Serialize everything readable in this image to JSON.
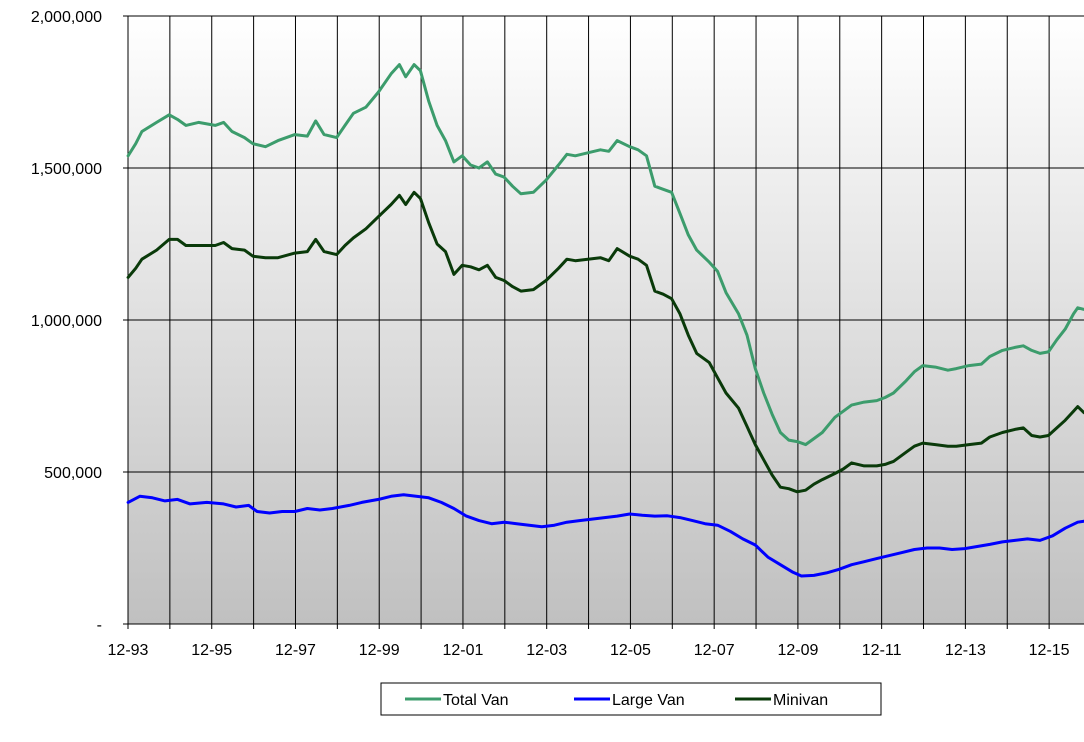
{
  "chart_data": {
    "type": "line",
    "title": "",
    "xlabel": "",
    "ylabel": "",
    "x_tick_labels": [
      "12-93",
      "12-95",
      "12-97",
      "12-99",
      "12-01",
      "12-03",
      "12-05",
      "12-07",
      "12-09",
      "12-11",
      "12-13",
      "12-15"
    ],
    "y_tick_labels": [
      "2,000,000",
      "1,500,000",
      "1,000,000",
      "500,000",
      "-"
    ],
    "ylim": [
      0,
      2000000
    ],
    "y_ticks": [
      0,
      500000,
      1000000,
      1500000,
      2000000
    ],
    "x_tick_years": [
      1993.917,
      1995.917,
      1997.917,
      1999.917,
      2001.917,
      2003.917,
      2005.917,
      2007.917,
      2009.917,
      2011.917,
      2013.917,
      2015.917
    ],
    "xlim": [
      1993.917,
      2016.75
    ],
    "vertical_grid_years": [
      1993.917,
      1994.917,
      1995.917,
      1996.917,
      1997.917,
      1998.917,
      1999.917,
      2000.917,
      2001.917,
      2002.917,
      2003.917,
      2004.917,
      2005.917,
      2006.917,
      2007.917,
      2008.917,
      2009.917,
      2010.917,
      2011.917,
      2012.917,
      2013.917,
      2014.917,
      2015.917
    ],
    "grid": true,
    "background_gradient": [
      "#ffffff",
      "#c0c0c0"
    ],
    "legend_position": "bottom",
    "series": [
      {
        "name": "Total Van",
        "color": "#3c9c6c",
        "points": [
          [
            1993.92,
            1540000
          ],
          [
            1994.1,
            1580000
          ],
          [
            1994.25,
            1620000
          ],
          [
            1994.6,
            1650000
          ],
          [
            1994.9,
            1675000
          ],
          [
            1995.1,
            1660000
          ],
          [
            1995.3,
            1640000
          ],
          [
            1995.6,
            1650000
          ],
          [
            1996.0,
            1640000
          ],
          [
            1996.2,
            1650000
          ],
          [
            1996.4,
            1620000
          ],
          [
            1996.7,
            1600000
          ],
          [
            1996.9,
            1580000
          ],
          [
            1997.2,
            1570000
          ],
          [
            1997.5,
            1590000
          ],
          [
            1997.9,
            1610000
          ],
          [
            1998.2,
            1605000
          ],
          [
            1998.4,
            1655000
          ],
          [
            1998.6,
            1610000
          ],
          [
            1998.9,
            1600000
          ],
          [
            1999.1,
            1640000
          ],
          [
            1999.3,
            1680000
          ],
          [
            1999.6,
            1700000
          ],
          [
            1999.9,
            1750000
          ],
          [
            2000.2,
            1810000
          ],
          [
            2000.4,
            1840000
          ],
          [
            2000.55,
            1800000
          ],
          [
            2000.75,
            1840000
          ],
          [
            2000.9,
            1820000
          ],
          [
            2001.1,
            1720000
          ],
          [
            2001.3,
            1640000
          ],
          [
            2001.5,
            1590000
          ],
          [
            2001.7,
            1520000
          ],
          [
            2001.9,
            1540000
          ],
          [
            2002.1,
            1510000
          ],
          [
            2002.3,
            1500000
          ],
          [
            2002.5,
            1520000
          ],
          [
            2002.7,
            1480000
          ],
          [
            2002.9,
            1470000
          ],
          [
            2003.1,
            1440000
          ],
          [
            2003.3,
            1415000
          ],
          [
            2003.6,
            1420000
          ],
          [
            2003.9,
            1460000
          ],
          [
            2004.2,
            1510000
          ],
          [
            2004.4,
            1545000
          ],
          [
            2004.6,
            1540000
          ],
          [
            2004.9,
            1550000
          ],
          [
            2005.2,
            1560000
          ],
          [
            2005.4,
            1555000
          ],
          [
            2005.6,
            1590000
          ],
          [
            2005.9,
            1570000
          ],
          [
            2006.1,
            1560000
          ],
          [
            2006.3,
            1540000
          ],
          [
            2006.5,
            1440000
          ],
          [
            2006.7,
            1430000
          ],
          [
            2006.9,
            1420000
          ],
          [
            2007.1,
            1350000
          ],
          [
            2007.3,
            1280000
          ],
          [
            2007.5,
            1230000
          ],
          [
            2007.8,
            1190000
          ],
          [
            2008.0,
            1160000
          ],
          [
            2008.2,
            1090000
          ],
          [
            2008.5,
            1020000
          ],
          [
            2008.7,
            950000
          ],
          [
            2008.9,
            840000
          ],
          [
            2009.1,
            760000
          ],
          [
            2009.3,
            690000
          ],
          [
            2009.5,
            630000
          ],
          [
            2009.7,
            605000
          ],
          [
            2009.9,
            600000
          ],
          [
            2010.1,
            590000
          ],
          [
            2010.3,
            610000
          ],
          [
            2010.5,
            630000
          ],
          [
            2010.8,
            680000
          ],
          [
            2011.0,
            700000
          ],
          [
            2011.2,
            720000
          ],
          [
            2011.5,
            730000
          ],
          [
            2011.8,
            735000
          ],
          [
            2012.0,
            745000
          ],
          [
            2012.2,
            760000
          ],
          [
            2012.5,
            800000
          ],
          [
            2012.7,
            830000
          ],
          [
            2012.9,
            850000
          ],
          [
            2013.2,
            845000
          ],
          [
            2013.5,
            835000
          ],
          [
            2013.7,
            840000
          ],
          [
            2014.0,
            850000
          ],
          [
            2014.3,
            855000
          ],
          [
            2014.5,
            880000
          ],
          [
            2014.8,
            900000
          ],
          [
            2015.1,
            910000
          ],
          [
            2015.3,
            915000
          ],
          [
            2015.5,
            900000
          ],
          [
            2015.7,
            890000
          ],
          [
            2015.9,
            895000
          ],
          [
            2016.1,
            935000
          ],
          [
            2016.3,
            970000
          ],
          [
            2016.5,
            1020000
          ],
          [
            2016.6,
            1040000
          ],
          [
            2016.75,
            1035000
          ]
        ]
      },
      {
        "name": "Large Van",
        "color": "#0000ff",
        "points": [
          [
            1993.92,
            400000
          ],
          [
            1994.2,
            420000
          ],
          [
            1994.5,
            415000
          ],
          [
            1994.8,
            405000
          ],
          [
            1995.1,
            410000
          ],
          [
            1995.4,
            395000
          ],
          [
            1995.8,
            400000
          ],
          [
            1996.2,
            395000
          ],
          [
            1996.5,
            385000
          ],
          [
            1996.8,
            390000
          ],
          [
            1997.0,
            370000
          ],
          [
            1997.3,
            365000
          ],
          [
            1997.6,
            370000
          ],
          [
            1997.9,
            370000
          ],
          [
            1998.2,
            380000
          ],
          [
            1998.5,
            375000
          ],
          [
            1998.8,
            380000
          ],
          [
            1999.2,
            390000
          ],
          [
            1999.5,
            400000
          ],
          [
            1999.9,
            410000
          ],
          [
            2000.2,
            420000
          ],
          [
            2000.5,
            425000
          ],
          [
            2000.8,
            420000
          ],
          [
            2001.1,
            415000
          ],
          [
            2001.4,
            400000
          ],
          [
            2001.7,
            380000
          ],
          [
            2002.0,
            355000
          ],
          [
            2002.3,
            340000
          ],
          [
            2002.6,
            330000
          ],
          [
            2002.9,
            335000
          ],
          [
            2003.2,
            330000
          ],
          [
            2003.5,
            325000
          ],
          [
            2003.8,
            320000
          ],
          [
            2004.1,
            325000
          ],
          [
            2004.4,
            335000
          ],
          [
            2004.7,
            340000
          ],
          [
            2005.0,
            345000
          ],
          [
            2005.3,
            350000
          ],
          [
            2005.6,
            355000
          ],
          [
            2005.9,
            362000
          ],
          [
            2006.2,
            358000
          ],
          [
            2006.5,
            355000
          ],
          [
            2006.8,
            356000
          ],
          [
            2007.1,
            350000
          ],
          [
            2007.4,
            340000
          ],
          [
            2007.7,
            330000
          ],
          [
            2008.0,
            325000
          ],
          [
            2008.3,
            305000
          ],
          [
            2008.6,
            280000
          ],
          [
            2008.9,
            260000
          ],
          [
            2009.2,
            220000
          ],
          [
            2009.5,
            195000
          ],
          [
            2009.8,
            170000
          ],
          [
            2010.0,
            158000
          ],
          [
            2010.3,
            160000
          ],
          [
            2010.6,
            168000
          ],
          [
            2010.9,
            180000
          ],
          [
            2011.2,
            195000
          ],
          [
            2011.5,
            205000
          ],
          [
            2011.8,
            215000
          ],
          [
            2012.1,
            225000
          ],
          [
            2012.4,
            235000
          ],
          [
            2012.7,
            245000
          ],
          [
            2013.0,
            250000
          ],
          [
            2013.3,
            250000
          ],
          [
            2013.6,
            245000
          ],
          [
            2013.9,
            248000
          ],
          [
            2014.2,
            255000
          ],
          [
            2014.5,
            262000
          ],
          [
            2014.8,
            270000
          ],
          [
            2015.1,
            275000
          ],
          [
            2015.4,
            280000
          ],
          [
            2015.7,
            275000
          ],
          [
            2016.0,
            290000
          ],
          [
            2016.3,
            315000
          ],
          [
            2016.6,
            335000
          ],
          [
            2016.75,
            338000
          ]
        ]
      },
      {
        "name": "Minivan",
        "color": "#0a3a0a",
        "points": [
          [
            1993.92,
            1140000
          ],
          [
            1994.1,
            1170000
          ],
          [
            1994.25,
            1200000
          ],
          [
            1994.6,
            1230000
          ],
          [
            1994.9,
            1265000
          ],
          [
            1995.1,
            1265000
          ],
          [
            1995.3,
            1245000
          ],
          [
            1995.6,
            1245000
          ],
          [
            1996.0,
            1245000
          ],
          [
            1996.2,
            1255000
          ],
          [
            1996.4,
            1235000
          ],
          [
            1996.7,
            1230000
          ],
          [
            1996.9,
            1210000
          ],
          [
            1997.2,
            1205000
          ],
          [
            1997.5,
            1205000
          ],
          [
            1997.9,
            1220000
          ],
          [
            1998.2,
            1225000
          ],
          [
            1998.4,
            1265000
          ],
          [
            1998.6,
            1225000
          ],
          [
            1998.9,
            1215000
          ],
          [
            1999.1,
            1245000
          ],
          [
            1999.3,
            1270000
          ],
          [
            1999.6,
            1300000
          ],
          [
            1999.9,
            1340000
          ],
          [
            2000.2,
            1380000
          ],
          [
            2000.4,
            1410000
          ],
          [
            2000.55,
            1380000
          ],
          [
            2000.75,
            1420000
          ],
          [
            2000.9,
            1400000
          ],
          [
            2001.1,
            1320000
          ],
          [
            2001.3,
            1250000
          ],
          [
            2001.5,
            1225000
          ],
          [
            2001.7,
            1150000
          ],
          [
            2001.9,
            1180000
          ],
          [
            2002.1,
            1175000
          ],
          [
            2002.3,
            1165000
          ],
          [
            2002.5,
            1180000
          ],
          [
            2002.7,
            1140000
          ],
          [
            2002.9,
            1130000
          ],
          [
            2003.1,
            1110000
          ],
          [
            2003.3,
            1095000
          ],
          [
            2003.6,
            1100000
          ],
          [
            2003.9,
            1130000
          ],
          [
            2004.2,
            1170000
          ],
          [
            2004.4,
            1200000
          ],
          [
            2004.6,
            1195000
          ],
          [
            2004.9,
            1200000
          ],
          [
            2005.2,
            1205000
          ],
          [
            2005.4,
            1195000
          ],
          [
            2005.6,
            1235000
          ],
          [
            2005.9,
            1210000
          ],
          [
            2006.1,
            1200000
          ],
          [
            2006.3,
            1180000
          ],
          [
            2006.5,
            1095000
          ],
          [
            2006.7,
            1085000
          ],
          [
            2006.9,
            1070000
          ],
          [
            2007.1,
            1020000
          ],
          [
            2007.3,
            950000
          ],
          [
            2007.5,
            890000
          ],
          [
            2007.8,
            860000
          ],
          [
            2008.0,
            810000
          ],
          [
            2008.2,
            760000
          ],
          [
            2008.5,
            710000
          ],
          [
            2008.7,
            650000
          ],
          [
            2008.9,
            590000
          ],
          [
            2009.1,
            540000
          ],
          [
            2009.3,
            490000
          ],
          [
            2009.5,
            450000
          ],
          [
            2009.7,
            445000
          ],
          [
            2009.9,
            435000
          ],
          [
            2010.1,
            440000
          ],
          [
            2010.3,
            460000
          ],
          [
            2010.5,
            475000
          ],
          [
            2010.8,
            495000
          ],
          [
            2011.0,
            510000
          ],
          [
            2011.2,
            530000
          ],
          [
            2011.5,
            520000
          ],
          [
            2011.8,
            520000
          ],
          [
            2012.0,
            525000
          ],
          [
            2012.2,
            535000
          ],
          [
            2012.5,
            565000
          ],
          [
            2012.7,
            585000
          ],
          [
            2012.9,
            595000
          ],
          [
            2013.2,
            590000
          ],
          [
            2013.5,
            585000
          ],
          [
            2013.7,
            585000
          ],
          [
            2014.0,
            590000
          ],
          [
            2014.3,
            595000
          ],
          [
            2014.5,
            615000
          ],
          [
            2014.8,
            630000
          ],
          [
            2015.1,
            640000
          ],
          [
            2015.3,
            645000
          ],
          [
            2015.5,
            620000
          ],
          [
            2015.7,
            615000
          ],
          [
            2015.9,
            620000
          ],
          [
            2016.1,
            645000
          ],
          [
            2016.3,
            670000
          ],
          [
            2016.5,
            700000
          ],
          [
            2016.6,
            715000
          ],
          [
            2016.75,
            695000
          ]
        ]
      }
    ]
  }
}
